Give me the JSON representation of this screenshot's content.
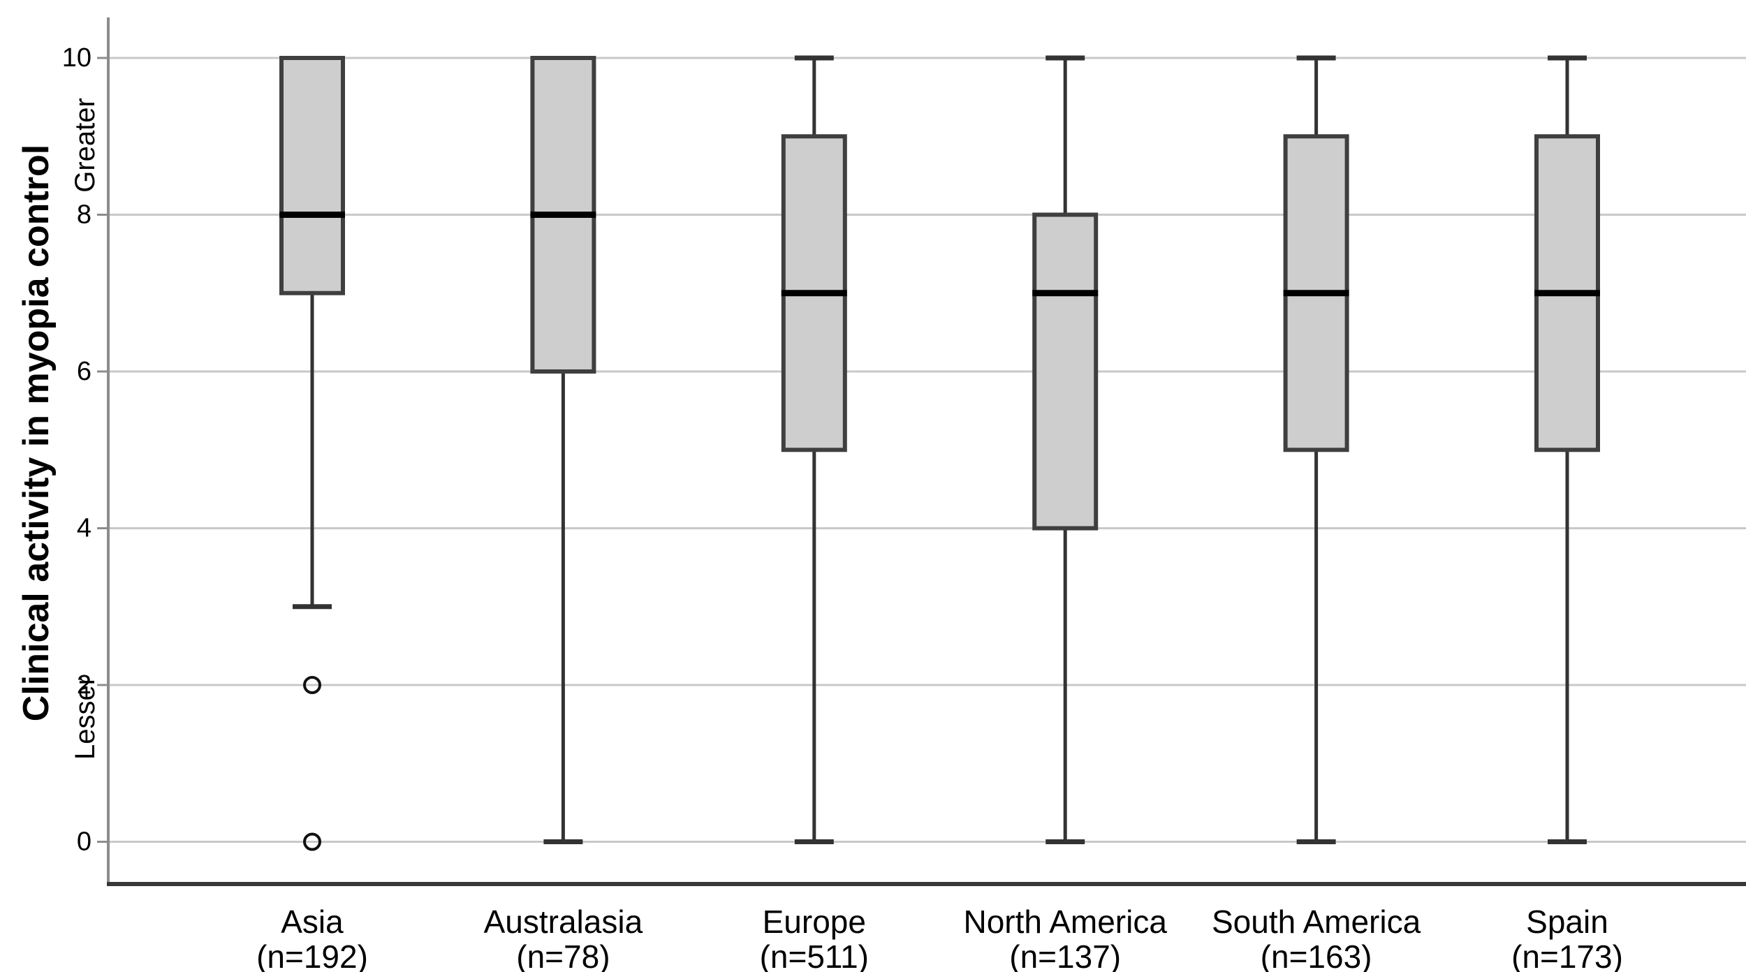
{
  "figure": {
    "kind": "box-and-whisker plot",
    "ylabel": "Clinical activity in myopia control",
    "ylabel_top_annotation": "Greater",
    "ylabel_bottom_annotation": "Lesser"
  },
  "chart_data": {
    "type": "boxplot",
    "title": "",
    "xlabel": "",
    "ylabel": "Clinical activity in myopia control",
    "ylabel_annotations": {
      "top": "Greater",
      "bottom": "Lesser"
    },
    "ylim": [
      0,
      10
    ],
    "y_ticks": [
      0,
      2,
      4,
      6,
      8,
      10
    ],
    "grid": "horizontal",
    "legend": "none",
    "categories": [
      "Asia",
      "Australasia",
      "Europe",
      "North America",
      "South America",
      "Spain"
    ],
    "category_sublabels": [
      "(n=192)",
      "(n=78)",
      "(n=511)",
      "(n=137)",
      "(n=163)",
      "(n=173)"
    ],
    "series": [
      {
        "name": "Asia",
        "n_label": "(n=192)",
        "whisker_low": 3,
        "q1": 7,
        "median": 8,
        "q3": 10,
        "whisker_high": 10,
        "outliers": [
          2,
          0
        ]
      },
      {
        "name": "Australasia",
        "n_label": "(n=78)",
        "whisker_low": 0,
        "q1": 6,
        "median": 8,
        "q3": 10,
        "whisker_high": 10,
        "outliers": []
      },
      {
        "name": "Europe",
        "n_label": "(n=511)",
        "whisker_low": 0,
        "q1": 5,
        "median": 7,
        "q3": 9,
        "whisker_high": 10,
        "outliers": []
      },
      {
        "name": "North America",
        "n_label": "(n=137)",
        "whisker_low": 0,
        "q1": 4,
        "median": 7,
        "q3": 8,
        "whisker_high": 10,
        "outliers": []
      },
      {
        "name": "South America",
        "n_label": "(n=163)",
        "whisker_low": 0,
        "q1": 5,
        "median": 7,
        "q3": 9,
        "whisker_high": 10,
        "outliers": []
      },
      {
        "name": "Spain",
        "n_label": "(n=173)",
        "whisker_low": 0,
        "q1": 5,
        "median": 7,
        "q3": 9,
        "whisker_high": 10,
        "outliers": []
      }
    ]
  },
  "colors": {
    "background": "#ffffff",
    "box_fill": "#cecece",
    "box_border": "#3f3f3f",
    "median": "#000000",
    "whisker": "#333333",
    "outlier_stroke": "#111111",
    "grid": "#c8c8c8",
    "axis_line": "#8c8c8c",
    "axis_bottom": "#383838",
    "text": "#000000"
  }
}
